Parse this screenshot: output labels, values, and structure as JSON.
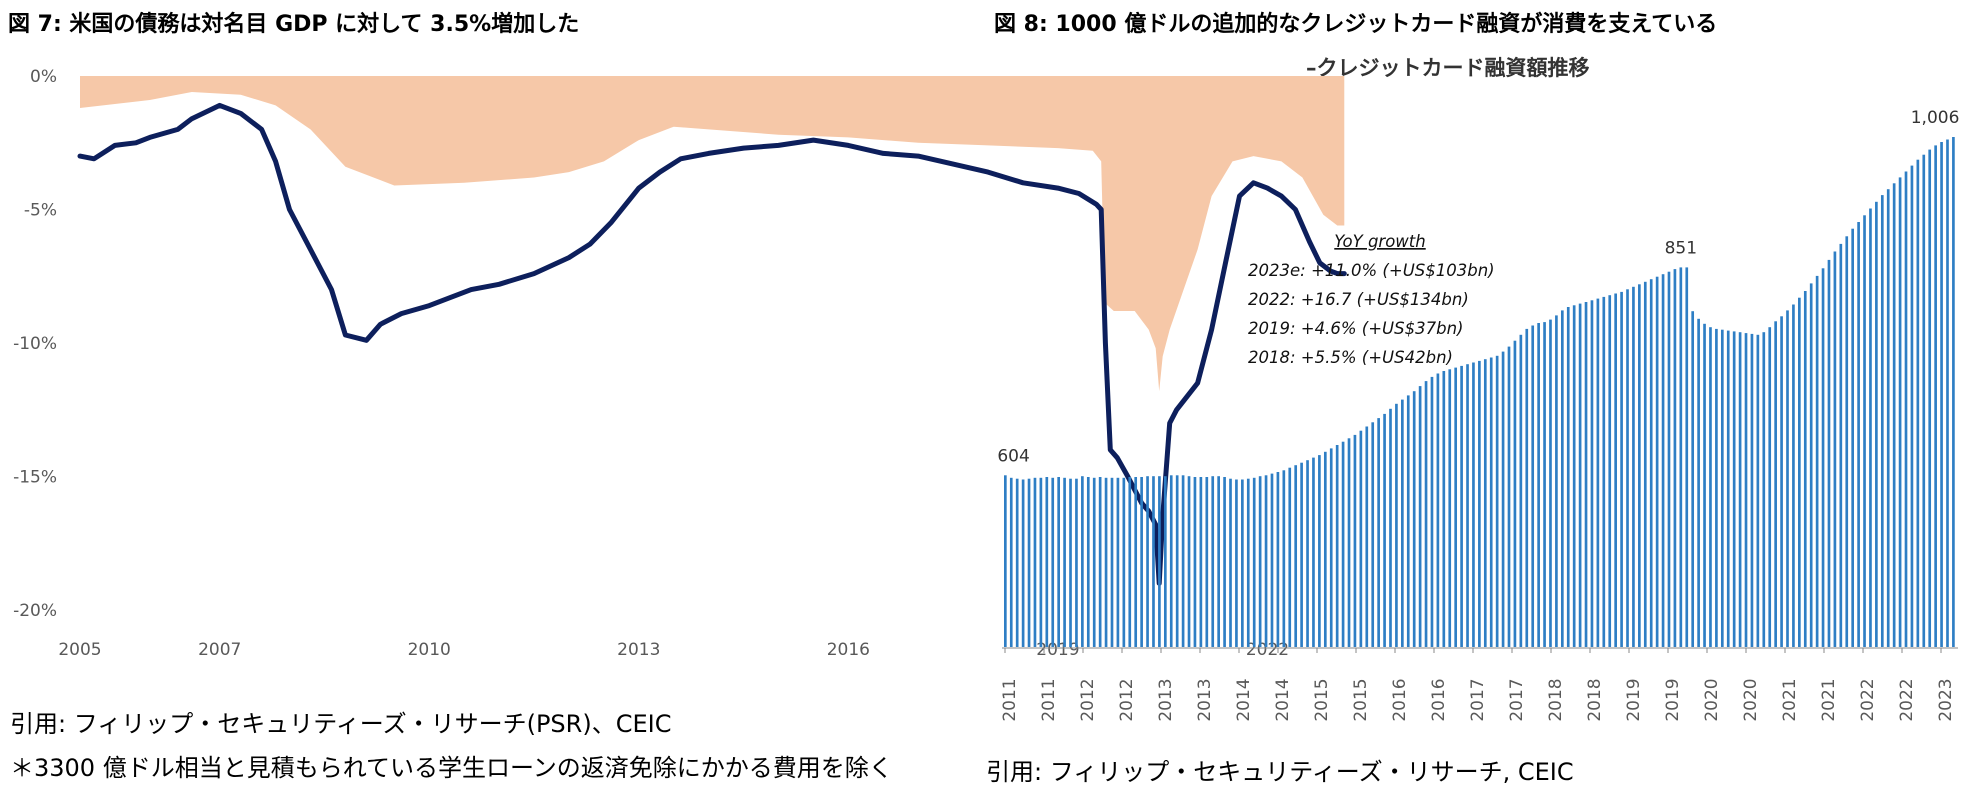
{
  "left": {
    "title": "図 7: 米国の債務は対名目 GDP に対して 3.5%増加した",
    "source": "引用: フィリップ・セキュリティーズ・リサーチ(PSR)、CEIC",
    "note": "＊3300 億ドル相当と見積もられている学生ローンの返済免除にかかる費用を除く"
  },
  "right": {
    "title": "図 8: 1000 億ドルの追加的なクレジットカード融資が消費を支えている",
    "subtitle": "–クレジットカード融資額推移",
    "source": "引用: フィリップ・セキュリティーズ・リサーチ, CEIC",
    "yoy_title": "YoY growth",
    "yoy_lines": [
      "2023e: +11.0% (+US$103bn)",
      "2022: +16.7 (+US$134bn)",
      "2019: +4.6% (+US$37bn)",
      "2018: +5.5% (+US42bn)"
    ]
  },
  "colors": {
    "line": "#0d1f5c",
    "area": "#f6c8a8",
    "bar": "#2e7ec4"
  },
  "chart_data": [
    {
      "type": "line",
      "title": "図 7: 米国の債務は対名目 GDP に対して 3.5%増加した",
      "y_tick_labels": [
        "0%",
        "-5%",
        "-10%",
        "-15%",
        "-20%"
      ],
      "x_tick_labels": [
        "2005",
        "2007",
        "2010",
        "2013",
        "2016",
        "2019",
        "2022"
      ],
      "ylim": [
        -20,
        0
      ],
      "series": [
        {
          "style": "area",
          "x": [
            2005.0,
            2006.0,
            2006.6,
            2007.3,
            2007.8,
            2008.3,
            2008.8,
            2009.5,
            2010.5,
            2011.5,
            2012.0,
            2012.5,
            2013.0,
            2013.5,
            2014.0,
            2015.0,
            2016.0,
            2017.0,
            2018.0,
            2019.0,
            2019.5,
            2019.62,
            2019.67,
            2019.8,
            2020.1,
            2020.3,
            2020.4,
            2020.45,
            2020.5,
            2020.6,
            2020.8,
            2021.0,
            2021.2,
            2021.5,
            2021.8,
            2022.2,
            2022.5,
            2022.8,
            2023.0,
            2023.1
          ],
          "values": [
            -1.2,
            -0.9,
            -0.6,
            -0.7,
            -1.1,
            -2.0,
            -3.4,
            -4.1,
            -4.0,
            -3.8,
            -3.6,
            -3.2,
            -2.4,
            -1.9,
            -2.0,
            -2.2,
            -2.3,
            -2.5,
            -2.6,
            -2.7,
            -2.8,
            -3.2,
            -8.5,
            -8.8,
            -8.8,
            -9.5,
            -10.2,
            -11.8,
            -10.5,
            -9.5,
            -8.0,
            -6.5,
            -4.5,
            -3.2,
            -3.0,
            -3.2,
            -3.8,
            -5.2,
            -5.6,
            -5.6
          ]
        },
        {
          "style": "line",
          "x": [
            2005.0,
            2005.2,
            2005.5,
            2005.8,
            2006.0,
            2006.4,
            2006.6,
            2007.0,
            2007.3,
            2007.6,
            2007.8,
            2008.0,
            2008.3,
            2008.6,
            2008.8,
            2009.1,
            2009.3,
            2009.6,
            2010.0,
            2010.3,
            2010.6,
            2011.0,
            2011.5,
            2012.0,
            2012.3,
            2012.6,
            2013.0,
            2013.3,
            2013.6,
            2014.0,
            2014.5,
            2015.0,
            2015.5,
            2016.0,
            2016.5,
            2017.0,
            2017.5,
            2018.0,
            2018.5,
            2019.0,
            2019.3,
            2019.55,
            2019.62,
            2019.68,
            2019.75,
            2019.85,
            2020.0,
            2020.1,
            2020.2,
            2020.3,
            2020.4,
            2020.45,
            2020.5,
            2020.6,
            2020.7,
            2020.85,
            2021.0,
            2021.2,
            2021.4,
            2021.6,
            2021.8,
            2022.0,
            2022.2,
            2022.4,
            2022.6,
            2022.75,
            2022.9,
            2023.0,
            2023.1
          ],
          "values": [
            -3.0,
            -3.1,
            -2.6,
            -2.5,
            -2.3,
            -2.0,
            -1.6,
            -1.1,
            -1.4,
            -2.0,
            -3.2,
            -5.0,
            -6.5,
            -8.0,
            -9.7,
            -9.9,
            -9.3,
            -8.9,
            -8.6,
            -8.3,
            -8.0,
            -7.8,
            -7.4,
            -6.8,
            -6.3,
            -5.5,
            -4.2,
            -3.6,
            -3.1,
            -2.9,
            -2.7,
            -2.6,
            -2.4,
            -2.6,
            -2.9,
            -3.0,
            -3.3,
            -3.6,
            -4.0,
            -4.2,
            -4.4,
            -4.8,
            -5.0,
            -10.0,
            -14.0,
            -14.3,
            -15.0,
            -15.5,
            -16.0,
            -16.3,
            -16.8,
            -19.0,
            -16.5,
            -13.0,
            -12.5,
            -12.0,
            -11.5,
            -9.5,
            -7.0,
            -4.5,
            -4.0,
            -4.2,
            -4.5,
            -5.0,
            -6.2,
            -7.0,
            -7.3,
            -7.4,
            -7.4
          ]
        }
      ]
    },
    {
      "type": "bar",
      "title": "図 8: 1000 億ドルの追加的なクレジットカード融資が消費を支えている",
      "subtitle": "–クレジットカード融資額推移",
      "x_tick_labels": [
        "2011",
        "2011",
        "2012",
        "2012",
        "2013",
        "2013",
        "2014",
        "2014",
        "2015",
        "2015",
        "2016",
        "2016",
        "2017",
        "2017",
        "2018",
        "2018",
        "2019",
        "2019",
        "2020",
        "2020",
        "2021",
        "2021",
        "2022",
        "2022",
        "2023"
      ],
      "annotations": [
        "604",
        "851",
        "1,006"
      ],
      "values": [
        604,
        601,
        600,
        599,
        600,
        601,
        601,
        602,
        601,
        602,
        601,
        600,
        600,
        603,
        602,
        601,
        602,
        601,
        601,
        601,
        601,
        602,
        602,
        602,
        603,
        603,
        603,
        603,
        604,
        604,
        604,
        603,
        602,
        602,
        602,
        603,
        603,
        602,
        600,
        599,
        599,
        600,
        601,
        603,
        604,
        606,
        608,
        610,
        613,
        616,
        619,
        622,
        625,
        628,
        632,
        636,
        640,
        644,
        648,
        652,
        657,
        662,
        667,
        672,
        677,
        683,
        689,
        694,
        699,
        704,
        710,
        716,
        721,
        725,
        728,
        730,
        732,
        734,
        736,
        738,
        740,
        742,
        744,
        746,
        751,
        757,
        764,
        771,
        778,
        782,
        785,
        786,
        789,
        794,
        800,
        804,
        806,
        808,
        810,
        812,
        814,
        816,
        818,
        820,
        822,
        825,
        828,
        831,
        834,
        837,
        840,
        843,
        846,
        849,
        851,
        851,
        799,
        790,
        784,
        780,
        778,
        777,
        776,
        775,
        774,
        773,
        772,
        771,
        774,
        780,
        787,
        793,
        800,
        807,
        815,
        823,
        832,
        841,
        850,
        860,
        870,
        879,
        888,
        897,
        905,
        913,
        921,
        929,
        937,
        944,
        951,
        958,
        965,
        972,
        979,
        985,
        991,
        996,
        1000,
        1003,
        1006
      ],
      "ylim": [
        400,
        1050
      ]
    }
  ]
}
